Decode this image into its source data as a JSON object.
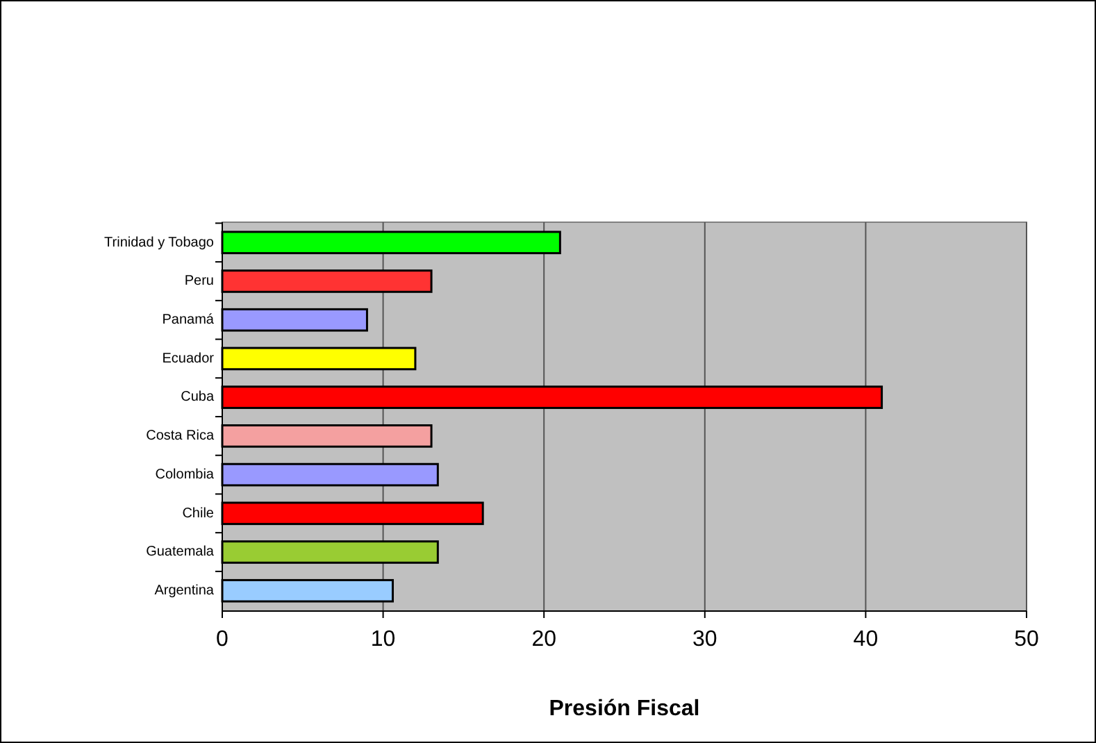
{
  "chart_data": {
    "type": "bar",
    "orientation": "horizontal",
    "xlabel": "Presión Fiscal",
    "categories": [
      "Trinidad y Tobago",
      "Peru",
      "Panamá",
      "Ecuador",
      "Cuba",
      "Costa Rica",
      "Colombia",
      "Chile",
      "Guatemala",
      "Argentina"
    ],
    "values": [
      21,
      13,
      9,
      12,
      41,
      13,
      13.4,
      16.2,
      13.4,
      10.6
    ],
    "colors": [
      "#00ff00",
      "#ff3333",
      "#9999ff",
      "#ffff00",
      "#ff0000",
      "#f4a0a0",
      "#9999ff",
      "#ff0000",
      "#99cc33",
      "#99ccff"
    ],
    "xlim": [
      0,
      50
    ],
    "xticks": [
      0,
      10,
      20,
      30,
      40,
      50
    ],
    "grid": "x"
  }
}
